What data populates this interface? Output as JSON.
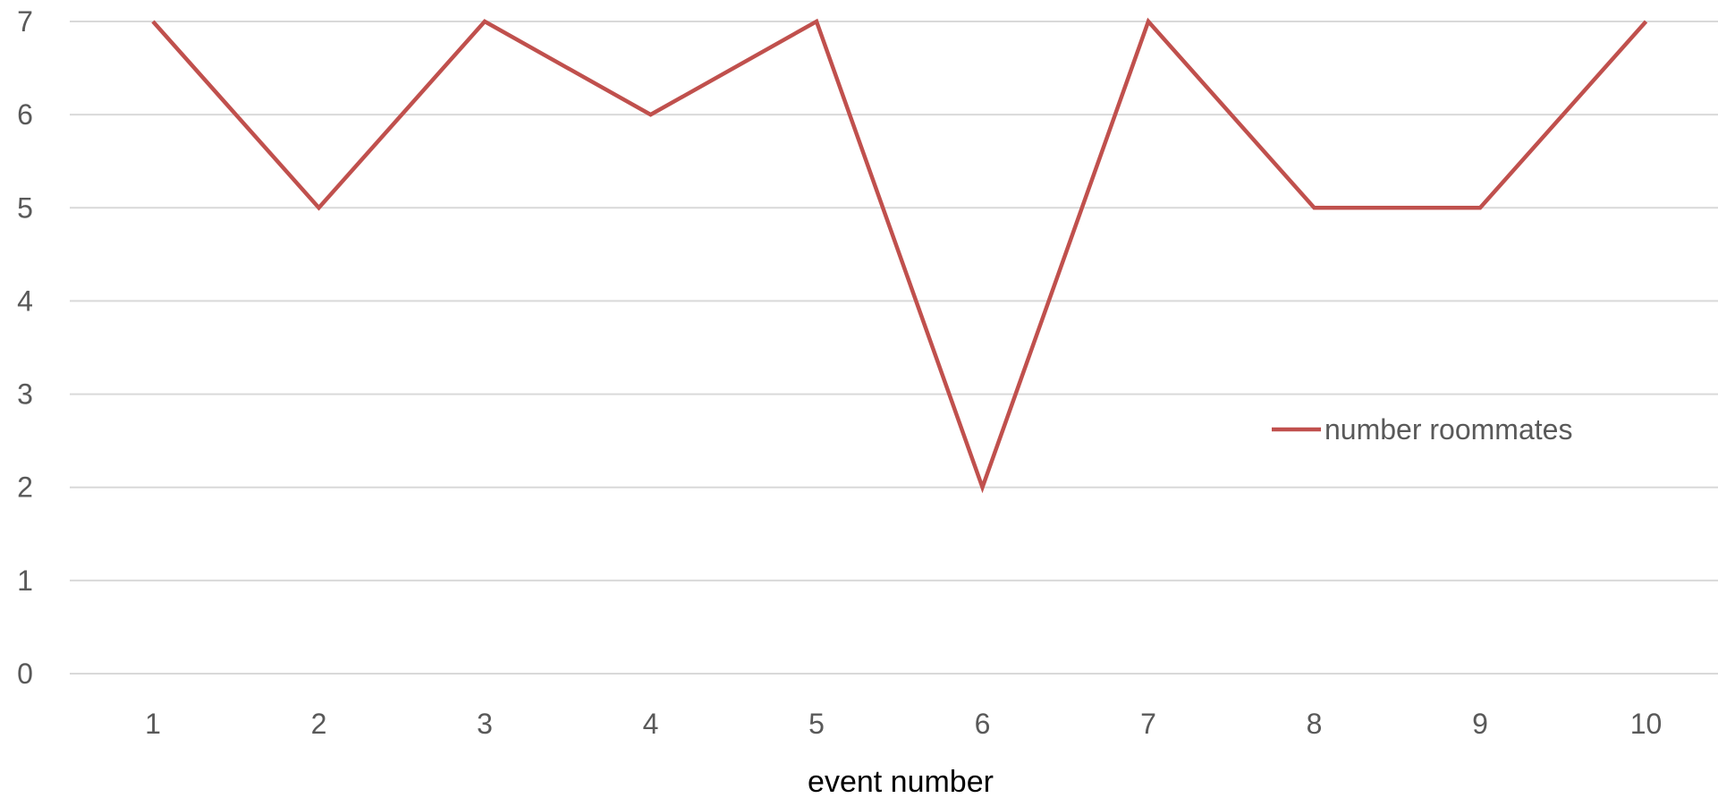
{
  "chart_data": {
    "type": "line",
    "title": "",
    "xlabel": "event number",
    "ylabel": "",
    "categories": [
      "1",
      "2",
      "3",
      "4",
      "5",
      "6",
      "7",
      "8",
      "9",
      "10"
    ],
    "series": [
      {
        "name": "number roommates",
        "values": [
          7,
          5,
          7,
          6,
          7,
          2,
          7,
          5,
          5,
          7
        ],
        "color": "#C0504D"
      }
    ],
    "ylim": [
      0,
      7
    ],
    "yticks": [
      "0",
      "1",
      "2",
      "3",
      "4",
      "5",
      "6",
      "7"
    ],
    "grid": true,
    "gridColor": "#D9D9D9",
    "legend": "right"
  }
}
